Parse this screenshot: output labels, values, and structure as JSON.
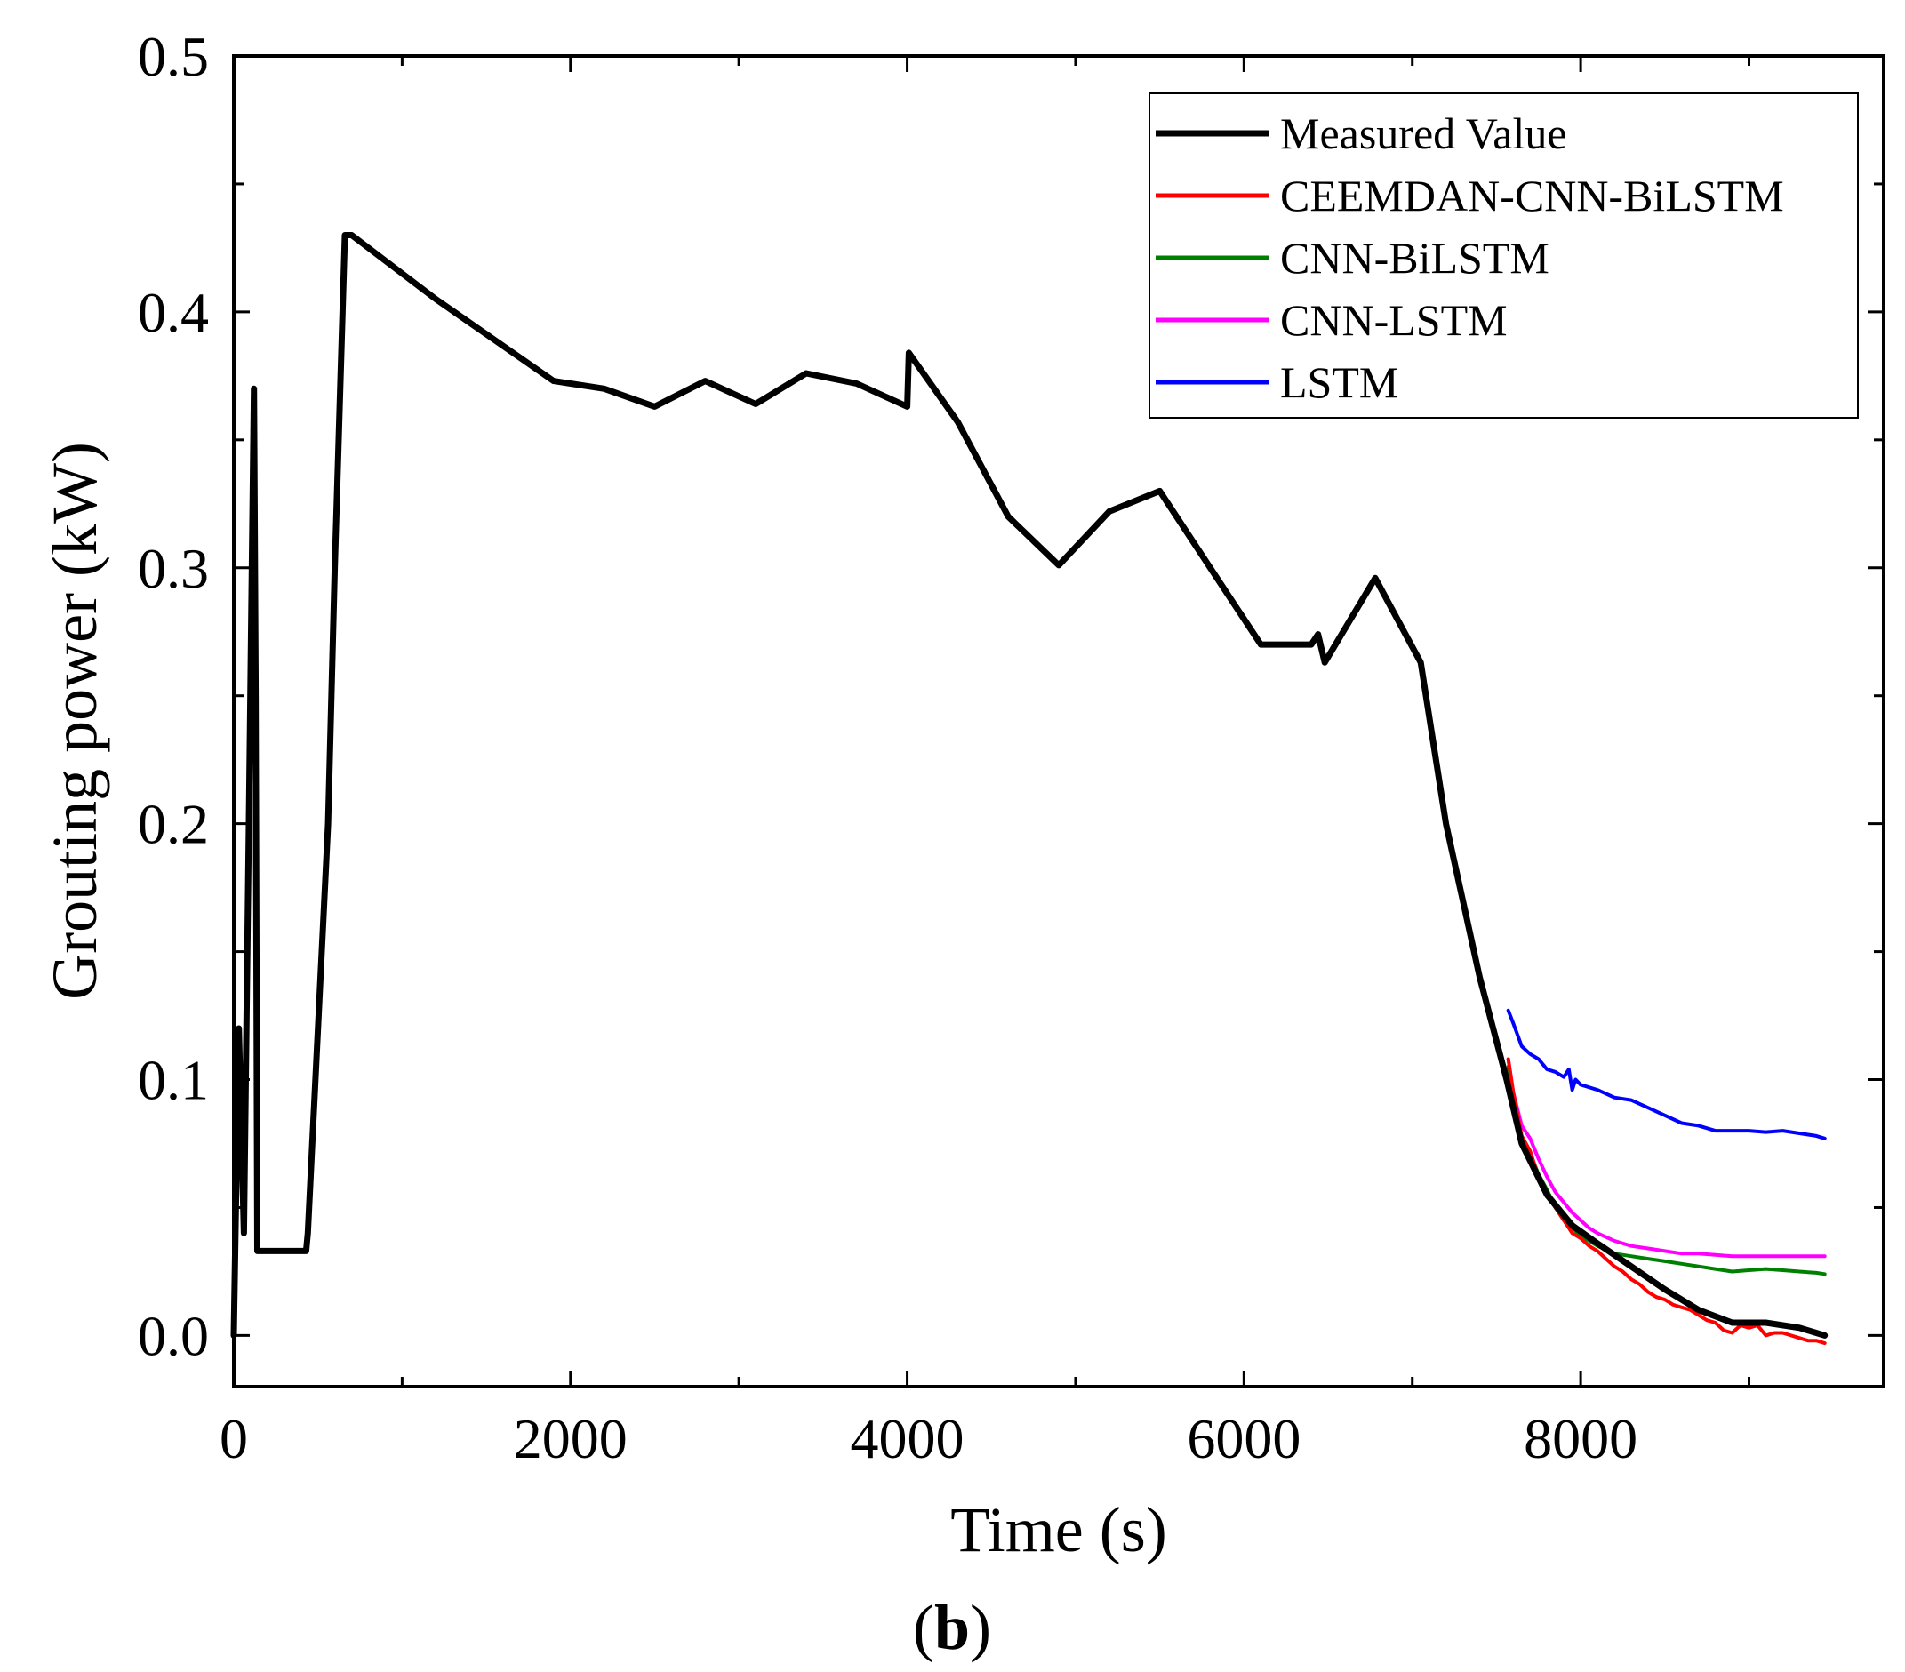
{
  "chart_data": {
    "type": "line",
    "panel_label": "(b)",
    "xlabel": "Time (s)",
    "ylabel": "Grouting power (kW)",
    "xlim": [
      0,
      9800
    ],
    "ylim": [
      -0.02,
      0.5
    ],
    "xticks": [
      0,
      2000,
      4000,
      6000,
      8000
    ],
    "xtick_labels": [
      "0",
      "2000",
      "4000",
      "6000",
      "8000"
    ],
    "yticks": [
      0.0,
      0.1,
      0.2,
      0.3,
      0.4,
      0.5
    ],
    "ytick_labels": [
      "0.0",
      "0.1",
      "0.2",
      "0.3",
      "0.4",
      "0.5"
    ],
    "legend_position": "top-right",
    "series": [
      {
        "name": "Measured Value",
        "color": "#000000",
        "x": [
          0,
          30,
          60,
          90,
          120,
          130,
          140,
          150,
          430,
          440,
          560,
          600,
          660,
          700,
          1200,
          1900,
          2200,
          2500,
          2800,
          3100,
          3400,
          3700,
          4000,
          4010,
          4300,
          4600,
          4900,
          5200,
          5500,
          5800,
          6100,
          6400,
          6440,
          6480,
          6780,
          7050,
          7200,
          7400,
          7560,
          7650,
          7800,
          7950,
          8100,
          8300,
          8500,
          8700,
          8900,
          9100,
          9300,
          9450
        ],
        "y": [
          0.0,
          0.12,
          0.04,
          0.2,
          0.37,
          0.25,
          0.033,
          0.033,
          0.033,
          0.04,
          0.2,
          0.3,
          0.43,
          0.43,
          0.405,
          0.373,
          0.37,
          0.363,
          0.373,
          0.364,
          0.376,
          0.372,
          0.363,
          0.384,
          0.357,
          0.32,
          0.301,
          0.322,
          0.33,
          0.3,
          0.27,
          0.27,
          0.274,
          0.263,
          0.296,
          0.263,
          0.2,
          0.14,
          0.1,
          0.075,
          0.055,
          0.043,
          0.036,
          0.027,
          0.018,
          0.01,
          0.005,
          0.005,
          0.003,
          0.0
        ]
      },
      {
        "name": "CEEMDAN-CNN-BiLSTM",
        "color": "#ff0000",
        "x": [
          7570,
          7600,
          7650,
          7700,
          7750,
          7800,
          7850,
          7900,
          7950,
          8000,
          8050,
          8100,
          8150,
          8200,
          8250,
          8300,
          8350,
          8400,
          8450,
          8500,
          8550,
          8600,
          8650,
          8700,
          8750,
          8800,
          8850,
          8900,
          8950,
          9000,
          9050,
          9100,
          9150,
          9200,
          9250,
          9300,
          9350,
          9400,
          9450
        ],
        "y": [
          0.108,
          0.095,
          0.078,
          0.072,
          0.062,
          0.055,
          0.05,
          0.045,
          0.04,
          0.038,
          0.035,
          0.033,
          0.03,
          0.027,
          0.025,
          0.022,
          0.02,
          0.017,
          0.015,
          0.014,
          0.012,
          0.011,
          0.01,
          0.008,
          0.006,
          0.005,
          0.002,
          0.001,
          0.004,
          0.003,
          0.004,
          0.0,
          0.001,
          0.001,
          0.0,
          -0.001,
          -0.002,
          -0.002,
          -0.003
        ]
      },
      {
        "name": "CNN-BiLSTM",
        "color": "#008000",
        "x": [
          7570,
          7600,
          7650,
          7700,
          7750,
          7800,
          7850,
          7900,
          7950,
          8000,
          8050,
          8100,
          8200,
          8300,
          8400,
          8500,
          8600,
          8700,
          8800,
          8900,
          9000,
          9100,
          9200,
          9300,
          9400,
          9450
        ],
        "y": [
          0.105,
          0.088,
          0.075,
          0.071,
          0.063,
          0.057,
          0.05,
          0.045,
          0.042,
          0.039,
          0.037,
          0.035,
          0.032,
          0.031,
          0.03,
          0.029,
          0.028,
          0.027,
          0.026,
          0.025,
          0.0255,
          0.026,
          0.0255,
          0.025,
          0.0245,
          0.024
        ]
      },
      {
        "name": "CNN-LSTM",
        "color": "#ff00ff",
        "x": [
          7570,
          7600,
          7650,
          7700,
          7750,
          7800,
          7850,
          7900,
          7950,
          8000,
          8050,
          8100,
          8200,
          8300,
          8400,
          8500,
          8600,
          8700,
          8800,
          8900,
          9000,
          9100,
          9200,
          9300,
          9400,
          9450
        ],
        "y": [
          0.108,
          0.095,
          0.082,
          0.077,
          0.069,
          0.062,
          0.056,
          0.052,
          0.048,
          0.045,
          0.042,
          0.04,
          0.037,
          0.035,
          0.034,
          0.033,
          0.032,
          0.032,
          0.0315,
          0.031,
          0.031,
          0.031,
          0.031,
          0.031,
          0.031,
          0.031
        ]
      },
      {
        "name": "LSTM",
        "color": "#0000ff",
        "x": [
          7570,
          7600,
          7650,
          7700,
          7750,
          7800,
          7850,
          7900,
          7930,
          7950,
          7970,
          8000,
          8100,
          8200,
          8300,
          8400,
          8500,
          8600,
          8700,
          8800,
          8900,
          9000,
          9100,
          9200,
          9300,
          9400,
          9450
        ],
        "y": [
          0.127,
          0.122,
          0.113,
          0.11,
          0.108,
          0.104,
          0.103,
          0.101,
          0.104,
          0.096,
          0.1,
          0.098,
          0.096,
          0.093,
          0.092,
          0.089,
          0.086,
          0.083,
          0.082,
          0.08,
          0.08,
          0.08,
          0.0795,
          0.08,
          0.079,
          0.078,
          0.077
        ]
      }
    ]
  }
}
